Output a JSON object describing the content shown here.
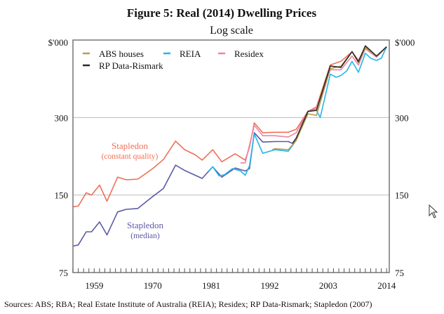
{
  "chart_data": {
    "type": "line",
    "title": "Figure 5: Real (2014) Dwelling Prices",
    "subtitle": "Log scale",
    "ylabel_left": "$'000",
    "ylabel_right": "$'000",
    "yscale": "log",
    "ylim": [
      75,
      600
    ],
    "yticks": [
      75,
      150,
      300
    ],
    "xlim": [
      1955,
      2014.5
    ],
    "xticks": [
      1959,
      1970,
      1981,
      1992,
      2003,
      2014
    ],
    "grid": true,
    "legend_placement": "top-left",
    "source": "Sources:   ABS; RBA; Real Estate Institute of Australia (REIA); Residex; RP Data-Rismark; Stapledon (2007)",
    "annotations": [
      {
        "text": "Stapledon",
        "sub": "(constant quality)",
        "series": "Stapledon (constant quality)"
      },
      {
        "text": "Stapledon",
        "sub": "(median)",
        "series": "Stapledon (median)"
      }
    ],
    "series": [
      {
        "name": "Stapledon (constant quality)",
        "legend": false,
        "color": "#ef7058",
        "points": [
          [
            1955,
            135
          ],
          [
            1956,
            136
          ],
          [
            1957.5,
            153
          ],
          [
            1958.5,
            150
          ],
          [
            1960,
            164
          ],
          [
            1961.4,
            142
          ],
          [
            1963.4,
            176
          ],
          [
            1965,
            172
          ],
          [
            1967.2,
            173
          ],
          [
            1970,
            190
          ],
          [
            1972,
            206
          ],
          [
            1974.3,
            243
          ],
          [
            1976,
            225
          ],
          [
            1978,
            215
          ],
          [
            1979.3,
            205
          ],
          [
            1981.3,
            225
          ],
          [
            1983,
            202
          ],
          [
            1985.5,
            217
          ],
          [
            1987.4,
            205
          ],
          [
            1988.2,
            230
          ],
          [
            1989.1,
            286
          ],
          [
            1990.7,
            262
          ],
          [
            1993,
            263
          ],
          [
            1995.5,
            263
          ],
          [
            1997,
            270
          ],
          [
            1999.2,
            317
          ],
          [
            2000.8,
            330
          ],
          [
            2003.4,
            480
          ],
          [
            2005.4,
            496
          ],
          [
            2007.5,
            540
          ],
          [
            2008.7,
            500
          ],
          [
            2010,
            565
          ],
          [
            2012.1,
            515
          ],
          [
            2014,
            565
          ]
        ]
      },
      {
        "name": "Stapledon (median)",
        "legend": false,
        "color": "#5b5aa6",
        "points": [
          [
            1955,
            95
          ],
          [
            1956,
            96
          ],
          [
            1957.5,
            108
          ],
          [
            1958.5,
            108
          ],
          [
            1960,
            118
          ],
          [
            1961.4,
            105
          ],
          [
            1963.4,
            129
          ],
          [
            1965,
            132
          ],
          [
            1967.2,
            133
          ],
          [
            1970,
            148
          ],
          [
            1972,
            159
          ],
          [
            1974.3,
            196
          ],
          [
            1976,
            187
          ],
          [
            1979.3,
            174
          ],
          [
            1981.3,
            193
          ],
          [
            1983,
            176
          ],
          [
            1985.5,
            191
          ],
          [
            1987.4,
            186
          ],
          [
            1988.2,
            190
          ],
          [
            1989.1,
            262
          ],
          [
            1990.7,
            241
          ],
          [
            1993,
            242
          ],
          [
            1995.5,
            242
          ],
          [
            1996.3,
            238
          ]
        ]
      },
      {
        "name": "REIA",
        "legend": true,
        "color": "#25b6e8",
        "points": [
          [
            1980.4,
            185
          ],
          [
            1981.3,
            193
          ],
          [
            1982.5,
            178
          ],
          [
            1983.5,
            180
          ],
          [
            1985,
            190
          ],
          [
            1986.5,
            186
          ],
          [
            1987.4,
            179
          ],
          [
            1988.2,
            195
          ],
          [
            1989.1,
            259
          ],
          [
            1990.7,
            218
          ],
          [
            1992,
            222
          ],
          [
            1993,
            225
          ],
          [
            1995.5,
            222
          ],
          [
            1997,
            245
          ],
          [
            1999.2,
            317
          ],
          [
            2000.8,
            320
          ],
          [
            2001.5,
            300
          ],
          [
            2003.4,
            442
          ],
          [
            2004.5,
            430
          ],
          [
            2005.4,
            437
          ],
          [
            2006.5,
            455
          ],
          [
            2007.5,
            496
          ],
          [
            2008.7,
            450
          ],
          [
            2010,
            533
          ],
          [
            2011,
            510
          ],
          [
            2012.1,
            500
          ],
          [
            2013,
            510
          ],
          [
            2014,
            565
          ]
        ]
      },
      {
        "name": "Residex",
        "legend": true,
        "color": "#ef82a8",
        "points": [
          [
            1986.5,
            200
          ],
          [
            1987.4,
            200
          ],
          [
            1989.1,
            280
          ],
          [
            1990.7,
            255
          ],
          [
            1993,
            255
          ],
          [
            1995.5,
            252
          ],
          [
            1997,
            262
          ],
          [
            1999.2,
            317
          ],
          [
            2000.8,
            325
          ],
          [
            2003.4,
            460
          ],
          [
            2005.4,
            460
          ],
          [
            2007.5,
            520
          ],
          [
            2008.7,
            480
          ],
          [
            2010,
            555
          ],
          [
            2012.1,
            515
          ],
          [
            2014,
            565
          ]
        ]
      },
      {
        "name": "ABS houses",
        "legend": true,
        "color": "#b89c4c",
        "points": [
          [
            1992.5,
            225
          ],
          [
            1993,
            227
          ],
          [
            1995.5,
            225
          ],
          [
            1997,
            245
          ],
          [
            1999.2,
            310
          ],
          [
            2000.8,
            306
          ],
          [
            2003.4,
            465
          ],
          [
            2005.4,
            475
          ],
          [
            2007.5,
            541
          ],
          [
            2008.7,
            490
          ],
          [
            2010,
            560
          ],
          [
            2012.1,
            520
          ],
          [
            2014,
            565
          ]
        ]
      },
      {
        "name": "RP Data-Rismark",
        "legend": true,
        "color": "#2b2b2b",
        "points": [
          [
            1996.3,
            238
          ],
          [
            1997,
            250
          ],
          [
            1999.2,
            317
          ],
          [
            2000.8,
            320
          ],
          [
            2003.4,
            476
          ],
          [
            2005.4,
            470
          ],
          [
            2007.5,
            541
          ],
          [
            2008.7,
            494
          ],
          [
            2010,
            570
          ],
          [
            2012.1,
            520
          ],
          [
            2014,
            565
          ]
        ]
      }
    ]
  }
}
